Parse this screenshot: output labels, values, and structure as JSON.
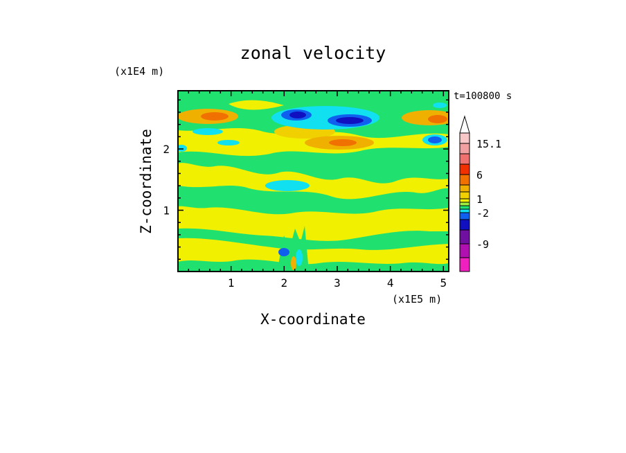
{
  "chart_data": {
    "type": "heatmap",
    "title": "zonal velocity",
    "xlabel": "X-coordinate",
    "ylabel": "Z-coordinate",
    "x_scale_label": "(x1E5 m)",
    "y_scale_label": "(x1E4 m)",
    "time_label": "t=100800 s",
    "xlim": [
      0,
      5.1
    ],
    "ylim": [
      0,
      2.95
    ],
    "x_ticks": [
      1,
      2,
      3,
      4,
      5
    ],
    "x_tick_labels": [
      "1",
      "2",
      "3",
      "4",
      "5"
    ],
    "y_ticks": [
      1,
      2
    ],
    "y_tick_labels": [
      "1",
      "2"
    ],
    "colorbar": {
      "colors": [
        "#f020c0",
        "#b010b0",
        "#7010a0",
        "#1010c0",
        "#1060f0",
        "#10e0f0",
        "#20e070",
        "#a0f040",
        "#f0f000",
        "#f0d000",
        "#f0b000",
        "#f07000",
        "#f03000",
        "#f07070",
        "#f0a0a0",
        "#f8c8c8"
      ],
      "bounds": [
        -17.6,
        -13.3,
        -9,
        -6,
        -4,
        -2,
        -1,
        0,
        0.5,
        1,
        2,
        4,
        6,
        9,
        12,
        15.1,
        18
      ],
      "labels": [
        "15.1",
        "6",
        "1",
        "-2",
        "-9"
      ],
      "label_values": [
        15.1,
        6,
        1,
        -2,
        -9
      ],
      "extend": "max"
    },
    "field_note_levels": {
      "background": "yellow 0 to 0.5",
      "bands": "green -1 to 0",
      "jets": "blue -6 to -4 near z=2.5",
      "maxima": "orange 4 to 6 near edges at z=2.5"
    }
  }
}
